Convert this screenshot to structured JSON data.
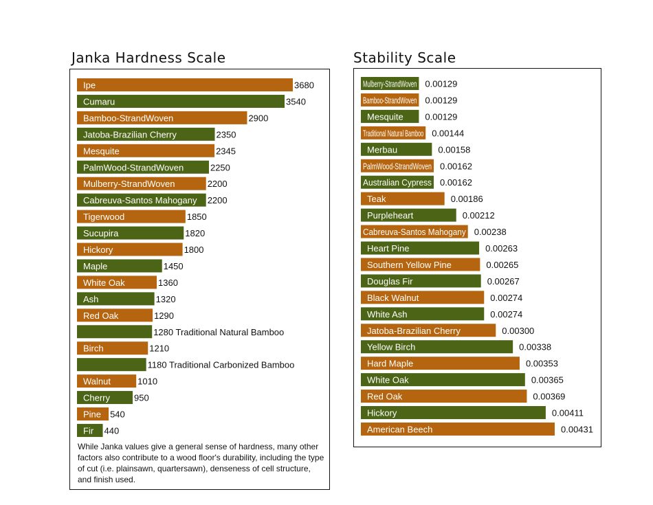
{
  "colors": {
    "orange": "#b5650f",
    "green": "#4b6416"
  },
  "chart_data": [
    {
      "type": "bar",
      "orientation": "horizontal",
      "title": "Janka Hardness Scale",
      "xlim": [
        0,
        3680
      ],
      "categories": [
        "Ipe",
        "Cumaru",
        "Bamboo-StrandWoven",
        "Jatoba-Brazilian Cherry",
        "Mesquite",
        "PalmWood-StrandWoven",
        "Mulberry-StrandWoven",
        "Cabreuva-Santos Mahogany",
        "Tigerwood",
        "Sucupira",
        "Hickory",
        "Maple",
        "White Oak",
        "Ash",
        "Red Oak",
        "",
        "Birch",
        "",
        "Walnut",
        "Cherry",
        "Pine",
        "Fir"
      ],
      "values": [
        3680,
        3540,
        2900,
        2350,
        2345,
        2250,
        2200,
        2200,
        1850,
        1820,
        1800,
        1450,
        1360,
        1320,
        1290,
        1280,
        1210,
        1180,
        1010,
        950,
        540,
        440
      ],
      "value_labels": [
        "3680",
        "3540",
        "2900",
        "2350",
        "2345",
        "2250",
        "2200",
        "2200",
        "1850",
        "1820",
        "1800",
        "1450",
        "1360",
        "1320",
        "1290",
        "1280  Traditional Natural Bamboo",
        "1210",
        "1180  Traditional Carbonized Bamboo",
        "1010",
        "950",
        "540",
        "440"
      ],
      "bar_colors": [
        "orange",
        "green",
        "orange",
        "green",
        "orange",
        "green",
        "orange",
        "green",
        "orange",
        "green",
        "orange",
        "green",
        "orange",
        "green",
        "orange",
        "green",
        "orange",
        "green",
        "orange",
        "green",
        "orange",
        "green"
      ],
      "note": "While Janka values give a general sense of hardness, many other factors also contribute to a wood floor's durability, including the type of cut (i.e. plainsawn, quartersawn), denseness of cell structure, and finish used."
    },
    {
      "type": "bar",
      "orientation": "horizontal",
      "title": "Stability Scale",
      "xlim": [
        0,
        0.00431
      ],
      "categories": [
        "Mulberry-StrandWoven",
        "Bamboo-StrandWoven",
        "Mesquite",
        "Traditional Natural Bamboo",
        "Merbau",
        "PalmWood-StrandWoven",
        "Australian Cypress",
        "Teak",
        "Purpleheart",
        "Cabreuva-Santos Mahogany",
        "Heart Pine",
        "Southern Yellow Pine",
        "Douglas Fir",
        "Black Walnut",
        "White Ash",
        "Jatoba-Brazilian Cherry",
        "Yellow Birch",
        "Hard Maple",
        "White Oak",
        "Red Oak",
        "Hickory",
        "American Beech"
      ],
      "values": [
        0.00129,
        0.00129,
        0.00129,
        0.00144,
        0.00158,
        0.00162,
        0.00162,
        0.00186,
        0.00212,
        0.00238,
        0.00263,
        0.00265,
        0.00267,
        0.00274,
        0.00274,
        0.003,
        0.00338,
        0.00353,
        0.00365,
        0.00369,
        0.00411,
        0.00431
      ],
      "value_labels": [
        "0.00129",
        "0.00129",
        "0.00129",
        "0.00144",
        "0.00158",
        "0.00162",
        "0.00162",
        "0.00186",
        "0.00212",
        "0.00238",
        "0.00263",
        "0.00265",
        "0.00267",
        "0.00274",
        "0.00274",
        "0.00300",
        "0.00338",
        "0.00353",
        "0.00365",
        "0.00369",
        "0.00411",
        "0.00431"
      ],
      "bar_colors": [
        "green",
        "orange",
        "green",
        "orange",
        "green",
        "orange",
        "green",
        "orange",
        "green",
        "orange",
        "green",
        "orange",
        "green",
        "orange",
        "green",
        "orange",
        "green",
        "orange",
        "green",
        "orange",
        "green",
        "orange"
      ]
    }
  ]
}
